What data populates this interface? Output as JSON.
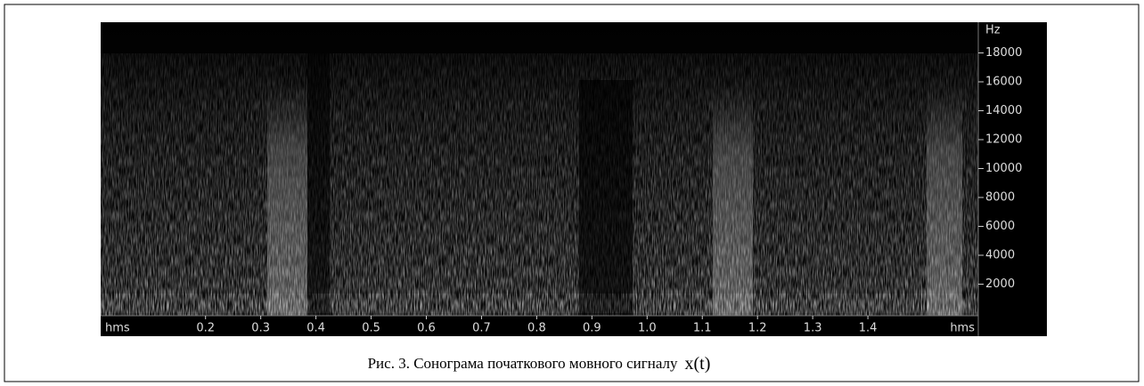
{
  "chart_data": {
    "type": "spectrogram",
    "caption": "Рис. 3. Сонограма початкового мовного сигналу",
    "caption_math": "x(t)",
    "x_label": "hms",
    "y_label": "Hz",
    "xlim": [
      0.01,
      1.6
    ],
    "xticks": [
      0.2,
      0.3,
      0.4,
      0.5,
      0.6,
      0.7,
      0.8,
      0.9,
      {
        "value": 1,
        "label": "1.0"
      },
      1.1,
      1.2,
      1.3,
      1.4
    ],
    "ylim": [
      0,
      20000
    ],
    "yticks": [
      2000,
      4000,
      6000,
      8000,
      10000,
      12000,
      14000,
      16000,
      18000
    ]
  }
}
